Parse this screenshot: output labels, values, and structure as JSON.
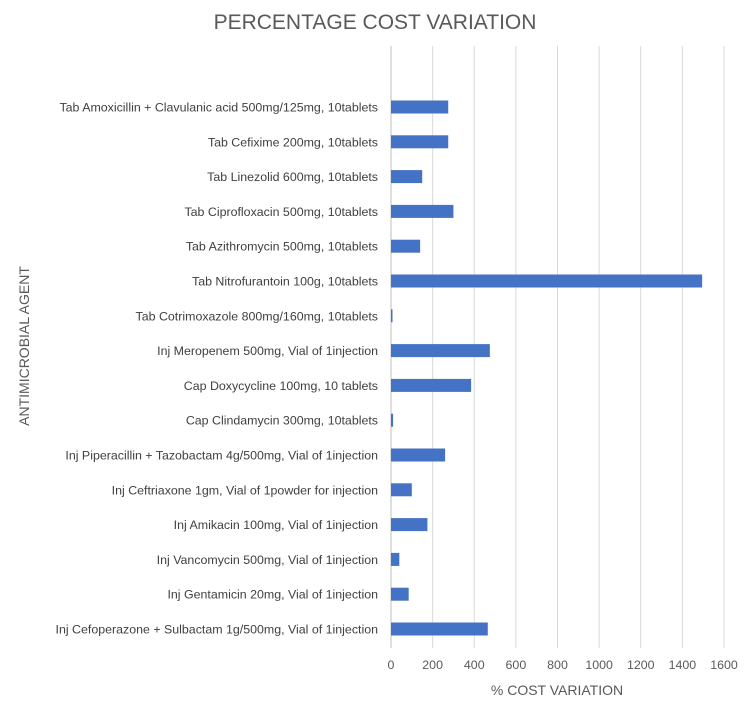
{
  "chart_data": {
    "type": "bar",
    "orientation": "horizontal",
    "title": "PERCENTAGE COST VARIATION",
    "xlabel": "% COST VARIATION",
    "ylabel": "ANTIMICROBIAL AGENT",
    "xlim": [
      0,
      1600
    ],
    "xticks": [
      "0",
      "200",
      "400",
      "600",
      "800",
      "1000",
      "1200",
      "1400",
      "1600"
    ],
    "grid": true,
    "legend": "none",
    "bar_color": "#4472C4",
    "categories": [
      "Tab Amoxicillin + Clavulanic acid 500mg/125mg, 10tablets",
      "Tab Cefixime 200mg, 10tablets",
      "Tab Linezolid 600mg, 10tablets",
      "Tab Ciprofloxacin 500mg, 10tablets",
      "Tab Azithromycin 500mg, 10tablets",
      "Tab Nitrofurantoin 100g, 10tablets",
      "Tab Cotrimoxazole 800mg/160mg, 10tablets",
      "Inj Meropenem 500mg, Vial of 1injection",
      "Cap Doxycycline 100mg, 10 tablets",
      "Cap Clindamycin 300mg, 10tablets",
      "Inj Piperacillin + Tazobactam 4g/500mg, Vial of 1injection",
      "Inj Ceftriaxone 1gm, Vial of 1powder for injection",
      "Inj Amikacin 100mg, Vial of 1injection",
      "Inj Vancomycin 500mg, Vial of 1injection",
      "Inj Gentamicin 20mg, Vial of 1injection",
      "Inj Cefoperazone + Sulbactam 1g/500mg, Vial of 1injection"
    ],
    "values": [
      275,
      275,
      150,
      300,
      140,
      1495,
      5,
      475,
      385,
      10,
      260,
      100,
      175,
      40,
      85,
      465
    ]
  }
}
